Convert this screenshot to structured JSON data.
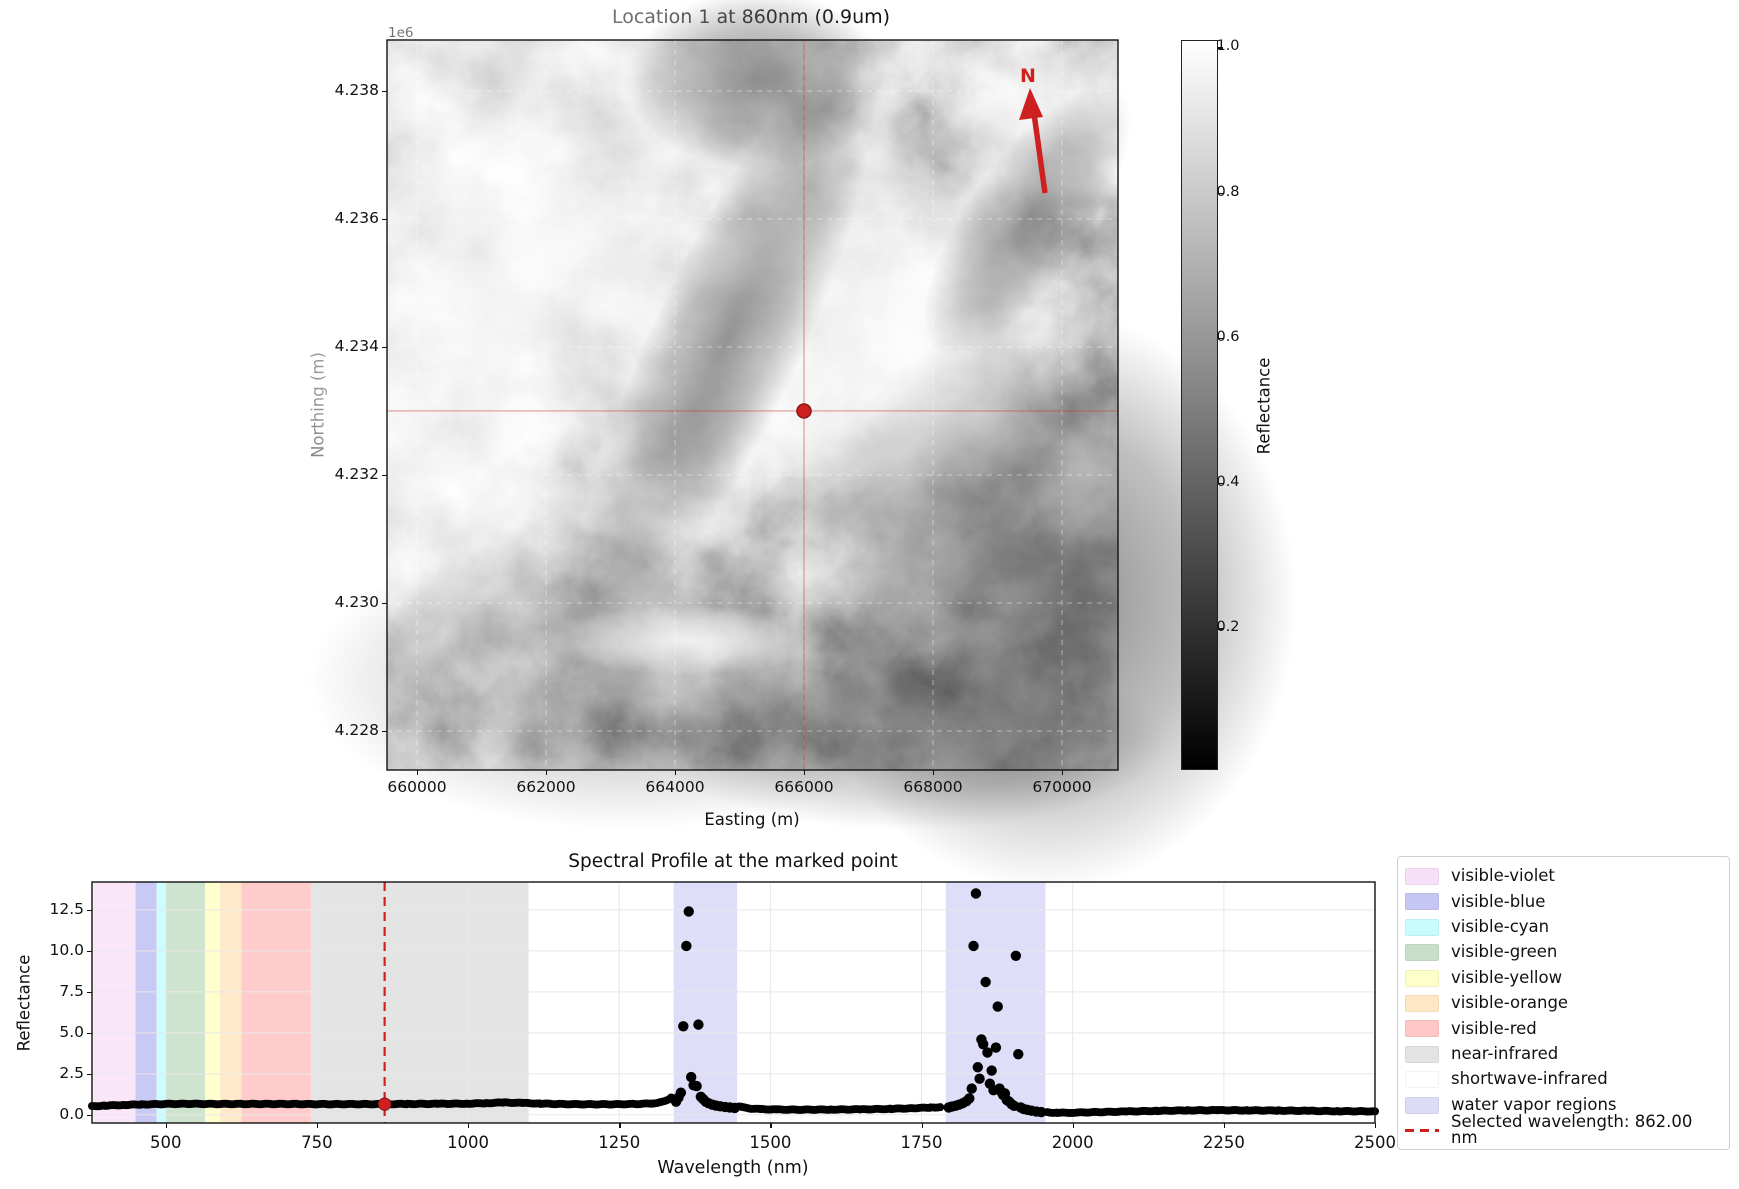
{
  "colors": {
    "accent_red": "#cf2020",
    "marker_edge": "#8a1414",
    "grid_gray": "#e8e8e8",
    "map_grid": "rgba(255,255,255,0.45)",
    "water_vapor": "#dedef8"
  },
  "map": {
    "title": "Location 1 at 860nm (0.9um)",
    "offset_label": "1e6",
    "xlabel": "Easting (m)",
    "ylabel": "Northing (m)",
    "north_label": "N",
    "xlim": [
      659535,
      670868
    ],
    "ylim": [
      4227390,
      4238796
    ],
    "x_ticks": [
      {
        "value": 660000,
        "label": "660000"
      },
      {
        "value": 662000,
        "label": "662000"
      },
      {
        "value": 664000,
        "label": "664000"
      },
      {
        "value": 666000,
        "label": "666000"
      },
      {
        "value": 668000,
        "label": "668000"
      },
      {
        "value": 670000,
        "label": "670000"
      }
    ],
    "y_ticks": [
      {
        "value": 4238000,
        "label": "4.238"
      },
      {
        "value": 4236000,
        "label": "4.236"
      },
      {
        "value": 4234000,
        "label": "4.234"
      },
      {
        "value": 4232000,
        "label": "4.232"
      },
      {
        "value": 4230000,
        "label": "4.230"
      },
      {
        "value": 4228000,
        "label": "4.228"
      }
    ],
    "marker": {
      "easting": 666000,
      "northing": 4233000
    },
    "colorbar": {
      "label": "Reflectance",
      "vmin": 0.0,
      "vmax": 1.0,
      "ticks": [
        {
          "value": 1.0,
          "label": "1.0"
        },
        {
          "value": 0.8,
          "label": "0.8"
        },
        {
          "value": 0.6,
          "label": "0.6"
        },
        {
          "value": 0.4,
          "label": "0.4"
        },
        {
          "value": 0.2,
          "label": "0.2"
        }
      ]
    }
  },
  "chart_data": {
    "type": "scatter",
    "title": "Spectral Profile at the marked point",
    "xlabel": "Wavelength (nm)",
    "ylabel": "Reflectance",
    "xlim": [
      378,
      2500
    ],
    "ylim": [
      -0.5,
      14.2
    ],
    "grid": true,
    "legend_position": "outside-right",
    "x_ticks": [
      {
        "value": 500,
        "label": "500"
      },
      {
        "value": 750,
        "label": "750"
      },
      {
        "value": 1000,
        "label": "1000"
      },
      {
        "value": 1250,
        "label": "1250"
      },
      {
        "value": 1500,
        "label": "1500"
      },
      {
        "value": 1750,
        "label": "1750"
      },
      {
        "value": 2000,
        "label": "2000"
      },
      {
        "value": 2250,
        "label": "2250"
      },
      {
        "value": 2500,
        "label": "2500"
      }
    ],
    "y_ticks": [
      {
        "value": 0.0,
        "label": "0.0"
      },
      {
        "value": 2.5,
        "label": "2.5"
      },
      {
        "value": 5.0,
        "label": "5.0"
      },
      {
        "value": 7.5,
        "label": "7.5"
      },
      {
        "value": 10.0,
        "label": "10.0"
      },
      {
        "value": 12.5,
        "label": "12.5"
      }
    ],
    "selected_wavelength_nm": 862.0,
    "selected_reflectance": 0.65,
    "regions": [
      {
        "name": "visible-violet",
        "from": 380,
        "to": 450,
        "color": "#f9e6f9"
      },
      {
        "name": "visible-blue",
        "from": 450,
        "to": 485,
        "color": "#c9c9f5"
      },
      {
        "name": "visible-cyan",
        "from": 485,
        "to": 500,
        "color": "#ccfdff"
      },
      {
        "name": "visible-green",
        "from": 500,
        "to": 565,
        "color": "#cfe4cf"
      },
      {
        "name": "visible-yellow",
        "from": 565,
        "to": 590,
        "color": "#feffcc"
      },
      {
        "name": "visible-orange",
        "from": 590,
        "to": 625,
        "color": "#ffe9cb"
      },
      {
        "name": "visible-red",
        "from": 625,
        "to": 740,
        "color": "#ffcccc"
      },
      {
        "name": "near-infrared",
        "from": 740,
        "to": 1100,
        "color": "#e4e4e4"
      },
      {
        "name": "shortwave-infrared",
        "from": 1100,
        "to": 2500,
        "color": "#ffffff"
      },
      {
        "name": "water vapor regions",
        "from": 1340,
        "to": 1445,
        "color": "#dedef8"
      },
      {
        "name": "water vapor regions",
        "from": 1790,
        "to": 1955,
        "color": "#dedef8"
      }
    ],
    "continuum_points": [
      [
        378,
        0.52
      ],
      [
        400,
        0.56
      ],
      [
        430,
        0.6
      ],
      [
        460,
        0.63
      ],
      [
        500,
        0.66
      ],
      [
        540,
        0.67
      ],
      [
        580,
        0.66
      ],
      [
        620,
        0.66
      ],
      [
        660,
        0.66
      ],
      [
        700,
        0.66
      ],
      [
        740,
        0.65
      ],
      [
        780,
        0.65
      ],
      [
        820,
        0.65
      ],
      [
        862,
        0.65
      ],
      [
        900,
        0.66
      ],
      [
        950,
        0.67
      ],
      [
        1000,
        0.68
      ],
      [
        1030,
        0.71
      ],
      [
        1060,
        0.75
      ],
      [
        1090,
        0.72
      ],
      [
        1120,
        0.68
      ],
      [
        1160,
        0.65
      ],
      [
        1200,
        0.64
      ],
      [
        1240,
        0.64
      ],
      [
        1280,
        0.66
      ],
      [
        1305,
        0.69
      ],
      [
        1320,
        0.78
      ],
      [
        1332,
        0.95
      ],
      [
        1338,
        1.1
      ],
      [
        1448,
        0.52
      ],
      [
        1456,
        0.44
      ],
      [
        1468,
        0.38
      ],
      [
        1485,
        0.34
      ],
      [
        1510,
        0.32
      ],
      [
        1550,
        0.31
      ],
      [
        1600,
        0.32
      ],
      [
        1650,
        0.33
      ],
      [
        1700,
        0.36
      ],
      [
        1735,
        0.4
      ],
      [
        1765,
        0.44
      ],
      [
        1785,
        0.47
      ],
      [
        1958,
        0.15
      ],
      [
        1975,
        0.12
      ],
      [
        2000,
        0.13
      ],
      [
        2040,
        0.16
      ],
      [
        2090,
        0.2
      ],
      [
        2140,
        0.24
      ],
      [
        2190,
        0.27
      ],
      [
        2240,
        0.28
      ],
      [
        2290,
        0.27
      ],
      [
        2340,
        0.26
      ],
      [
        2390,
        0.24
      ],
      [
        2440,
        0.22
      ],
      [
        2500,
        0.21
      ]
    ],
    "water_vapor_scatter": [
      [
        1344,
        0.8
      ],
      [
        1348,
        1.05
      ],
      [
        1352,
        1.35
      ],
      [
        1356,
        5.4
      ],
      [
        1361,
        10.3
      ],
      [
        1365,
        12.4
      ],
      [
        1369,
        2.3
      ],
      [
        1373,
        1.8
      ],
      [
        1378,
        1.75
      ],
      [
        1381,
        5.5
      ],
      [
        1385,
        1.1
      ],
      [
        1389,
        0.95
      ],
      [
        1393,
        0.8
      ],
      [
        1398,
        0.7
      ],
      [
        1404,
        0.62
      ],
      [
        1410,
        0.56
      ],
      [
        1417,
        0.52
      ],
      [
        1425,
        0.48
      ],
      [
        1433,
        0.45
      ],
      [
        1441,
        0.42
      ],
      [
        1795,
        0.45
      ],
      [
        1800,
        0.5
      ],
      [
        1806,
        0.55
      ],
      [
        1812,
        0.62
      ],
      [
        1818,
        0.7
      ],
      [
        1824,
        0.82
      ],
      [
        1829,
        1.0
      ],
      [
        1833,
        1.6
      ],
      [
        1836,
        10.3
      ],
      [
        1840,
        13.5
      ],
      [
        1843,
        2.9
      ],
      [
        1846,
        2.2
      ],
      [
        1849,
        4.6
      ],
      [
        1852,
        4.3
      ],
      [
        1856,
        8.1
      ],
      [
        1859,
        3.8
      ],
      [
        1863,
        1.9
      ],
      [
        1866,
        2.7
      ],
      [
        1869,
        1.5
      ],
      [
        1873,
        4.1
      ],
      [
        1876,
        6.6
      ],
      [
        1879,
        1.6
      ],
      [
        1882,
        1.4
      ],
      [
        1885,
        1.2
      ],
      [
        1888,
        1.3
      ],
      [
        1891,
        0.9
      ],
      [
        1895,
        0.8
      ],
      [
        1899,
        0.65
      ],
      [
        1903,
        0.55
      ],
      [
        1906,
        9.7
      ],
      [
        1910,
        3.7
      ],
      [
        1914,
        0.45
      ],
      [
        1919,
        0.35
      ],
      [
        1925,
        0.3
      ],
      [
        1932,
        0.25
      ],
      [
        1940,
        0.2
      ],
      [
        1948,
        0.17
      ]
    ],
    "legend_items": [
      {
        "label": "visible-violet",
        "swatch": "patch",
        "color": "#f7e0f7"
      },
      {
        "label": "visible-blue",
        "swatch": "patch",
        "color": "#c6c6f2"
      },
      {
        "label": "visible-cyan",
        "swatch": "patch",
        "color": "#c8fcff"
      },
      {
        "label": "visible-green",
        "swatch": "patch",
        "color": "#cadfca"
      },
      {
        "label": "visible-yellow",
        "swatch": "patch",
        "color": "#fdffc8"
      },
      {
        "label": "visible-orange",
        "swatch": "patch",
        "color": "#ffe6c4"
      },
      {
        "label": "visible-red",
        "swatch": "patch",
        "color": "#ffc6c6"
      },
      {
        "label": "near-infrared",
        "swatch": "patch",
        "color": "#e3e3e3"
      },
      {
        "label": "shortwave-infrared",
        "swatch": "patch",
        "color": "#ffffff"
      },
      {
        "label": "water vapor regions",
        "swatch": "patch",
        "color": "#dcdcf7"
      },
      {
        "label": "Selected wavelength: 862.00 nm",
        "swatch": "dashed-line",
        "color": "#cf2020"
      }
    ]
  }
}
